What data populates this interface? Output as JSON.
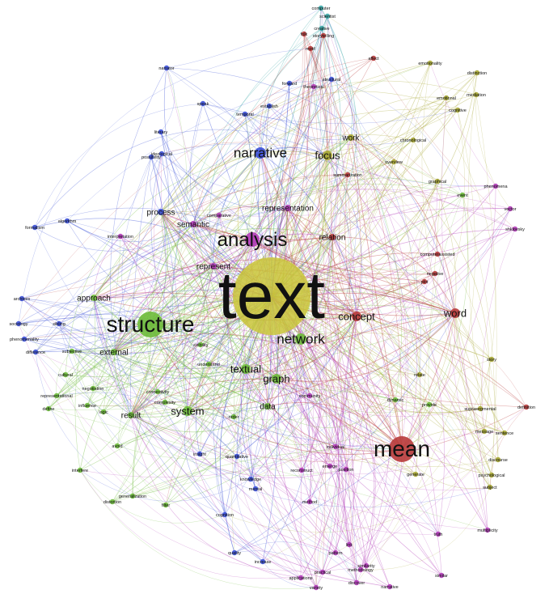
{
  "colors": {
    "blue": "#3a4fd8",
    "green": "#6dbb3a",
    "purple": "#b13ab8",
    "red": "#b83a3a",
    "yellow": "#c9c438",
    "olive": "#a7a733",
    "teal": "#3aa7a7",
    "orange": "#d9882e"
  },
  "hubs": [
    {
      "id": "text",
      "label": "text",
      "weight": 10,
      "color": "yellow"
    },
    {
      "id": "mean",
      "label": "mean",
      "weight": 6,
      "color": "red"
    },
    {
      "id": "structure",
      "label": "structure",
      "weight": 6,
      "color": "green"
    },
    {
      "id": "analysis",
      "label": "analysis",
      "weight": 5,
      "color": "purple"
    },
    {
      "id": "narrative",
      "label": "narrative",
      "weight": 4,
      "color": "blue"
    },
    {
      "id": "network",
      "label": "network",
      "weight": 4,
      "color": "green"
    },
    {
      "id": "word",
      "label": "word",
      "weight": 3,
      "color": "red"
    },
    {
      "id": "graph",
      "label": "graph",
      "weight": 3,
      "color": "green"
    },
    {
      "id": "focus",
      "label": "focus",
      "weight": 3,
      "color": "olive"
    },
    {
      "id": "concept",
      "label": "concept",
      "weight": 3,
      "color": "red"
    },
    {
      "id": "textual",
      "label": "textual",
      "weight": 3,
      "color": "green"
    },
    {
      "id": "system",
      "label": "system",
      "weight": 3,
      "color": "green"
    },
    {
      "id": "represent",
      "label": "represent",
      "weight": 2,
      "color": "purple"
    },
    {
      "id": "approach",
      "label": "approach",
      "weight": 2,
      "color": "green"
    },
    {
      "id": "relation",
      "label": "relation",
      "weight": 2,
      "color": "red"
    },
    {
      "id": "semantic",
      "label": "semantic",
      "weight": 2,
      "color": "purple"
    },
    {
      "id": "representation",
      "label": "representation",
      "weight": 2,
      "color": "purple"
    },
    {
      "id": "external",
      "label": "external",
      "weight": 2,
      "color": "green"
    },
    {
      "id": "data",
      "label": "data",
      "weight": 2,
      "color": "green"
    },
    {
      "id": "result",
      "label": "result",
      "weight": 2,
      "color": "green"
    },
    {
      "id": "work",
      "label": "work",
      "weight": 2,
      "color": "olive"
    },
    {
      "id": "process",
      "label": "process",
      "weight": 2,
      "color": "blue"
    }
  ],
  "terms": [
    {
      "id": "computer",
      "label": "computer",
      "color": "teal"
    },
    {
      "id": "scientist",
      "label": "scientist",
      "color": "teal"
    },
    {
      "id": "creative",
      "label": "creative",
      "color": "teal"
    },
    {
      "id": "folk",
      "label": "folk",
      "color": "red"
    },
    {
      "id": "storytelling",
      "label": "storytelling",
      "color": "red"
    },
    {
      "id": "motif",
      "label": "motif",
      "color": "red"
    },
    {
      "id": "affect",
      "label": "affect",
      "color": "red"
    },
    {
      "id": "emotionality",
      "label": "emotionality",
      "color": "olive"
    },
    {
      "id": "distinction",
      "label": "distinction",
      "color": "olive"
    },
    {
      "id": "narrator",
      "label": "narrator",
      "color": "blue"
    },
    {
      "id": "forward",
      "label": "forward",
      "color": "blue"
    },
    {
      "id": "structural",
      "label": "structural",
      "color": "blue"
    },
    {
      "id": "theoretical",
      "label": "theoretical",
      "color": "purple"
    },
    {
      "id": "mediation",
      "label": "mediation",
      "color": "olive"
    },
    {
      "id": "emotional",
      "label": "emotional",
      "color": "olive"
    },
    {
      "id": "cognitive",
      "label": "cognitive",
      "color": "olive"
    },
    {
      "id": "speak",
      "label": "speak",
      "color": "blue"
    },
    {
      "id": "temporal",
      "label": "temporal",
      "color": "blue"
    },
    {
      "id": "establish",
      "label": "establish",
      "color": "blue"
    },
    {
      "id": "chronological",
      "label": "chronological",
      "color": "olive"
    },
    {
      "id": "overview",
      "label": "overview",
      "color": "olive"
    },
    {
      "id": "event",
      "label": "event",
      "color": "green"
    },
    {
      "id": "phenomena",
      "label": "phenomena",
      "color": "purple"
    },
    {
      "id": "vector",
      "label": "vector",
      "color": "purple"
    },
    {
      "id": "shklovsky",
      "label": "shklovsky",
      "color": "purple"
    },
    {
      "id": "ideological",
      "label": "ideological",
      "color": "blue"
    },
    {
      "id": "literary",
      "label": "literary",
      "color": "blue"
    },
    {
      "id": "possibility",
      "label": "possibility",
      "color": "blue"
    },
    {
      "id": "algorithm",
      "label": "algorithm",
      "color": "blue"
    },
    {
      "id": "formalism",
      "label": "formalism",
      "color": "blue"
    },
    {
      "id": "interpretation",
      "label": "interpretation",
      "color": "purple"
    },
    {
      "id": "comparative",
      "label": "comparative",
      "color": "purple"
    },
    {
      "id": "summarization",
      "label": "summarization",
      "color": "red"
    },
    {
      "id": "graphical",
      "label": "graphical",
      "color": "olive"
    },
    {
      "id": "computerassisted",
      "label": "computerassisted",
      "color": "red"
    },
    {
      "id": "negative",
      "label": "negative",
      "color": "red"
    },
    {
      "id": "plot",
      "label": "plot",
      "color": "red"
    },
    {
      "id": "archives",
      "label": "archives",
      "color": "blue"
    },
    {
      "id": "sociology",
      "label": "sociology",
      "color": "blue"
    },
    {
      "id": "phenomenality",
      "label": "phenomenality",
      "color": "blue"
    },
    {
      "id": "difference",
      "label": "difference",
      "color": "blue"
    },
    {
      "id": "sibling",
      "label": "sibling",
      "color": "blue"
    },
    {
      "id": "subjective",
      "label": "subjective",
      "color": "green"
    },
    {
      "id": "cultural",
      "label": "cultural",
      "color": "green"
    },
    {
      "id": "representational",
      "label": "representational",
      "color": "green"
    },
    {
      "id": "negotiation",
      "label": "negotiation",
      "color": "green"
    },
    {
      "id": "influence",
      "label": "influence",
      "color": "green"
    },
    {
      "id": "logic",
      "label": "logic",
      "color": "green"
    },
    {
      "id": "define",
      "label": "define",
      "color": "green"
    },
    {
      "id": "connectivity",
      "label": "connectivity",
      "color": "green"
    },
    {
      "id": "complexity",
      "label": "complexity",
      "color": "green"
    },
    {
      "id": "understand",
      "label": "understand",
      "color": "green"
    },
    {
      "id": "visibility",
      "label": "visibility",
      "color": "green"
    },
    {
      "id": "order",
      "label": "order",
      "color": "green"
    },
    {
      "id": "insight",
      "label": "insight",
      "color": "blue"
    },
    {
      "id": "quantitative",
      "label": "quantitative",
      "color": "blue"
    },
    {
      "id": "knowledge",
      "label": "knowledge",
      "color": "blue"
    },
    {
      "id": "mental",
      "label": "mental",
      "color": "blue"
    },
    {
      "id": "reconstruct",
      "label": "reconstruct",
      "color": "purple"
    },
    {
      "id": "emerge",
      "label": "emerge",
      "color": "purple"
    },
    {
      "id": "position",
      "label": "position",
      "color": "purple"
    },
    {
      "id": "individual",
      "label": "individual",
      "color": "purple"
    },
    {
      "id": "community",
      "label": "community",
      "color": "purple"
    },
    {
      "id": "dynamic",
      "label": "dynamic",
      "color": "green"
    },
    {
      "id": "provide",
      "label": "provide",
      "color": "green"
    },
    {
      "id": "relate",
      "label": "relate",
      "color": "olive"
    },
    {
      "id": "story",
      "label": "story",
      "color": "olive"
    },
    {
      "id": "definition",
      "label": "definition",
      "color": "red"
    },
    {
      "id": "suprasegmental",
      "label": "suprasegmental",
      "color": "olive"
    },
    {
      "id": "message",
      "label": "message",
      "color": "olive"
    },
    {
      "id": "sentence",
      "label": "sentence",
      "color": "olive"
    },
    {
      "id": "discourse",
      "label": "discourse",
      "color": "olive"
    },
    {
      "id": "psychological",
      "label": "psychological",
      "color": "olive"
    },
    {
      "id": "subject",
      "label": "subject",
      "color": "olive"
    },
    {
      "id": "generate",
      "label": "generate",
      "color": "olive"
    },
    {
      "id": "multiplicity",
      "label": "multiplicity",
      "color": "purple"
    },
    {
      "id": "truth",
      "label": "truth",
      "color": "purple"
    },
    {
      "id": "method",
      "label": "method",
      "color": "purple"
    },
    {
      "id": "cognition",
      "label": "cognition",
      "color": "blue"
    },
    {
      "id": "avoid",
      "label": "avoid",
      "color": "green"
    },
    {
      "id": "interfere",
      "label": "interfere",
      "color": "green"
    },
    {
      "id": "distortion",
      "label": "distortion",
      "color": "green"
    },
    {
      "id": "generalization",
      "label": "generalization",
      "color": "green"
    },
    {
      "id": "filter",
      "label": "filter",
      "color": "green"
    },
    {
      "id": "quality",
      "label": "quality",
      "color": "blue"
    },
    {
      "id": "increase",
      "label": "increase",
      "color": "blue"
    },
    {
      "id": "applications",
      "label": "applications",
      "color": "purple"
    },
    {
      "id": "practical",
      "label": "practical",
      "color": "purple"
    },
    {
      "id": "discover",
      "label": "discover",
      "color": "purple"
    },
    {
      "id": "pattern",
      "label": "pattern",
      "color": "purple"
    },
    {
      "id": "methodology",
      "label": "methodology",
      "color": "purple"
    },
    {
      "id": "similarity",
      "label": "similarity",
      "color": "purple"
    },
    {
      "id": "variety",
      "label": "variety",
      "color": "purple"
    },
    {
      "id": "narrative2",
      "label": "narrative",
      "color": "purple"
    },
    {
      "id": "similar",
      "label": "similar",
      "color": "purple"
    },
    {
      "id": "link",
      "label": "link",
      "color": "purple"
    }
  ]
}
